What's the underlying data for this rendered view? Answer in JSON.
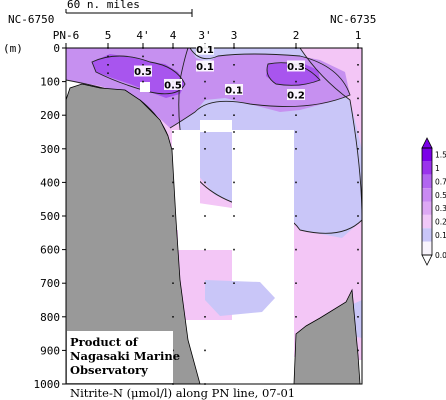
{
  "chart_data": {
    "type": "heatmap",
    "title": "Nitrite-N (μmol/l) along PN line, 07-01",
    "ylabel": "(m)",
    "ylim": [
      0,
      1000
    ],
    "y_ticks": [
      0,
      100,
      200,
      300,
      400,
      500,
      600,
      700,
      800,
      900,
      1000
    ],
    "scale_bar_label": "60 n. miles",
    "station_ids": [
      {
        "label": "NC-6750"
      },
      {
        "label": "NC-6735"
      }
    ],
    "stations": [
      "PN-6",
      "5",
      "4'",
      "4",
      "3'",
      "3",
      "2",
      "1"
    ],
    "contour_labels": [
      {
        "text": "0.5",
        "station": "4'",
        "depth": 70
      },
      {
        "text": "0.5",
        "station": "4",
        "depth": 110
      },
      {
        "text": "0.1",
        "station": "3'",
        "depth": 5
      },
      {
        "text": "0.1",
        "station": "3'",
        "depth": 55
      },
      {
        "text": "0.1",
        "station": "3",
        "depth": 125
      },
      {
        "text": "0.3",
        "station": "2",
        "depth": 55
      },
      {
        "text": "0.2",
        "station": "2",
        "depth": 140
      }
    ],
    "colorbar": {
      "levels": [
        "1.5",
        "1",
        "0.7",
        "0.5",
        "0.3",
        "0.2",
        "0.1",
        "0.05"
      ],
      "colors": [
        "#7B00E8",
        "#9A33EC",
        "#B266F0",
        "#C98AF2",
        "#DDA8F4",
        "#F0C8F8",
        "#C9C6F8",
        "#F8F4FC"
      ]
    },
    "credit": [
      "Product of",
      "Nagasaki Marine",
      "Observatory"
    ],
    "colors": {
      "topography": "#999999",
      "pink": "#F3C6F6",
      "lavender": "#C9C6F8",
      "violet": "#C690F0",
      "purple": "#A855EE"
    }
  }
}
